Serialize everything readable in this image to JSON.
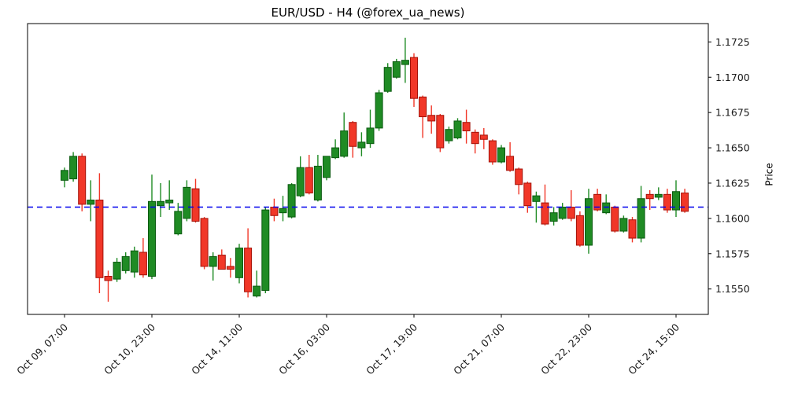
{
  "title": "EUR/USD - H4 (@forex_ua_news)",
  "colors": {
    "background": "#ffffff",
    "up_fill": "#1f8b24",
    "up_edge": "#0b5a10",
    "down_fill": "#f13728",
    "down_edge": "#a31208",
    "hline": "#0000ee",
    "spine": "#000000",
    "tick_text": "#1a1a1a",
    "title_text": "#000000"
  },
  "chart_data": {
    "type": "candlestick",
    "title": "EUR/USD - H4 (@forex_ua_news)",
    "symbol": "EUR/USD",
    "timeframe": "H4",
    "source_handle": "@forex_ua_news",
    "ylabel": "Price",
    "xlabel": "",
    "grid": false,
    "legend": null,
    "ylim": [
      1.1532,
      1.1738
    ],
    "y_ticks": [
      1.155,
      1.1575,
      1.16,
      1.1625,
      1.165,
      1.1675,
      1.17,
      1.1725
    ],
    "y_tick_decimals": 4,
    "x_tick_indices": [
      0,
      10,
      20,
      30,
      40,
      50,
      60,
      70
    ],
    "x_tick_labels": [
      "Oct 09, 07:00",
      "Oct 10, 23:00",
      "Oct 14, 11:00",
      "Oct 16, 03:00",
      "Oct 17, 19:00",
      "Oct 21, 07:00",
      "Oct 22, 23:00",
      "Oct 24, 15:00"
    ],
    "hline": {
      "value": 1.1608,
      "style": "dashed",
      "color": "#0000ee"
    },
    "candle_format": "[open, high, low, close]",
    "candles": [
      [
        1.1627,
        1.1636,
        1.1622,
        1.1634
      ],
      [
        1.1628,
        1.1647,
        1.1626,
        1.1644
      ],
      [
        1.1644,
        1.1646,
        1.1605,
        1.161
      ],
      [
        1.161,
        1.1627,
        1.1598,
        1.1613
      ],
      [
        1.1613,
        1.1632,
        1.1547,
        1.1558
      ],
      [
        1.1559,
        1.1563,
        1.1541,
        1.1556
      ],
      [
        1.1557,
        1.1572,
        1.1555,
        1.1569
      ],
      [
        1.1563,
        1.1576,
        1.1561,
        1.1573
      ],
      [
        1.1562,
        1.158,
        1.1558,
        1.1577
      ],
      [
        1.1576,
        1.1586,
        1.1558,
        1.156
      ],
      [
        1.1559,
        1.1631,
        1.1557,
        1.1612
      ],
      [
        1.1609,
        1.1625,
        1.1601,
        1.1612
      ],
      [
        1.1611,
        1.1627,
        1.1606,
        1.1613
      ],
      [
        1.1589,
        1.1611,
        1.1588,
        1.1605
      ],
      [
        1.16,
        1.1627,
        1.1598,
        1.1622
      ],
      [
        1.1621,
        1.1628,
        1.1597,
        1.1598
      ],
      [
        1.16,
        1.1601,
        1.1564,
        1.1566
      ],
      [
        1.1566,
        1.1576,
        1.1556,
        1.1573
      ],
      [
        1.1574,
        1.1578,
        1.1564,
        1.1564
      ],
      [
        1.1566,
        1.1572,
        1.1558,
        1.1564
      ],
      [
        1.1558,
        1.1582,
        1.1554,
        1.1579
      ],
      [
        1.1579,
        1.1593,
        1.1544,
        1.1548
      ],
      [
        1.1545,
        1.1563,
        1.1544,
        1.1552
      ],
      [
        1.1549,
        1.1608,
        1.1547,
        1.1606
      ],
      [
        1.1608,
        1.1614,
        1.1598,
        1.1602
      ],
      [
        1.1604,
        1.1616,
        1.1598,
        1.1607
      ],
      [
        1.1601,
        1.1625,
        1.16,
        1.1624
      ],
      [
        1.1616,
        1.1644,
        1.1615,
        1.1636
      ],
      [
        1.1636,
        1.1645,
        1.1617,
        1.1618
      ],
      [
        1.1613,
        1.1645,
        1.1612,
        1.1637
      ],
      [
        1.1629,
        1.1644,
        1.1627,
        1.1644
      ],
      [
        1.1643,
        1.1656,
        1.1642,
        1.165
      ],
      [
        1.1644,
        1.1675,
        1.1643,
        1.1662
      ],
      [
        1.1668,
        1.1669,
        1.1643,
        1.1651
      ],
      [
        1.165,
        1.1661,
        1.1644,
        1.1654
      ],
      [
        1.1653,
        1.1677,
        1.165,
        1.1664
      ],
      [
        1.1664,
        1.1691,
        1.1662,
        1.1689
      ],
      [
        1.169,
        1.171,
        1.1689,
        1.1707
      ],
      [
        1.17,
        1.1713,
        1.1699,
        1.1711
      ],
      [
        1.1709,
        1.1728,
        1.1696,
        1.1712
      ],
      [
        1.1714,
        1.1717,
        1.1679,
        1.1685
      ],
      [
        1.1686,
        1.1687,
        1.1657,
        1.1672
      ],
      [
        1.1673,
        1.168,
        1.166,
        1.1669
      ],
      [
        1.1673,
        1.1674,
        1.1647,
        1.165
      ],
      [
        1.1655,
        1.1665,
        1.1653,
        1.1663
      ],
      [
        1.1657,
        1.1671,
        1.1656,
        1.1669
      ],
      [
        1.1668,
        1.1677,
        1.1653,
        1.1662
      ],
      [
        1.1661,
        1.1663,
        1.1646,
        1.1653
      ],
      [
        1.1659,
        1.1664,
        1.1649,
        1.1656
      ],
      [
        1.1655,
        1.1656,
        1.1638,
        1.164
      ],
      [
        1.164,
        1.1652,
        1.1639,
        1.165
      ],
      [
        1.1644,
        1.1654,
        1.1633,
        1.1634
      ],
      [
        1.1635,
        1.1636,
        1.1617,
        1.1624
      ],
      [
        1.1625,
        1.1626,
        1.1604,
        1.1609
      ],
      [
        1.1612,
        1.1619,
        1.1597,
        1.1616
      ],
      [
        1.1611,
        1.1624,
        1.1595,
        1.1596
      ],
      [
        1.1598,
        1.1608,
        1.1595,
        1.1604
      ],
      [
        1.16,
        1.1611,
        1.1599,
        1.1608
      ],
      [
        1.1608,
        1.162,
        1.1598,
        1.16
      ],
      [
        1.1602,
        1.1605,
        1.158,
        1.1581
      ],
      [
        1.1581,
        1.1621,
        1.1575,
        1.1614
      ],
      [
        1.1617,
        1.1621,
        1.1605,
        1.1606
      ],
      [
        1.1604,
        1.1617,
        1.1603,
        1.1611
      ],
      [
        1.1608,
        1.1609,
        1.159,
        1.1591
      ],
      [
        1.1591,
        1.1602,
        1.159,
        1.16
      ],
      [
        1.1599,
        1.1601,
        1.1583,
        1.1586
      ],
      [
        1.1586,
        1.1623,
        1.1583,
        1.1614
      ],
      [
        1.1617,
        1.162,
        1.1606,
        1.1614
      ],
      [
        1.1615,
        1.1622,
        1.1613,
        1.1617
      ],
      [
        1.1617,
        1.1621,
        1.1604,
        1.1606
      ],
      [
        1.1606,
        1.1627,
        1.1601,
        1.1619
      ],
      [
        1.1618,
        1.1621,
        1.1604,
        1.1605
      ]
    ]
  }
}
